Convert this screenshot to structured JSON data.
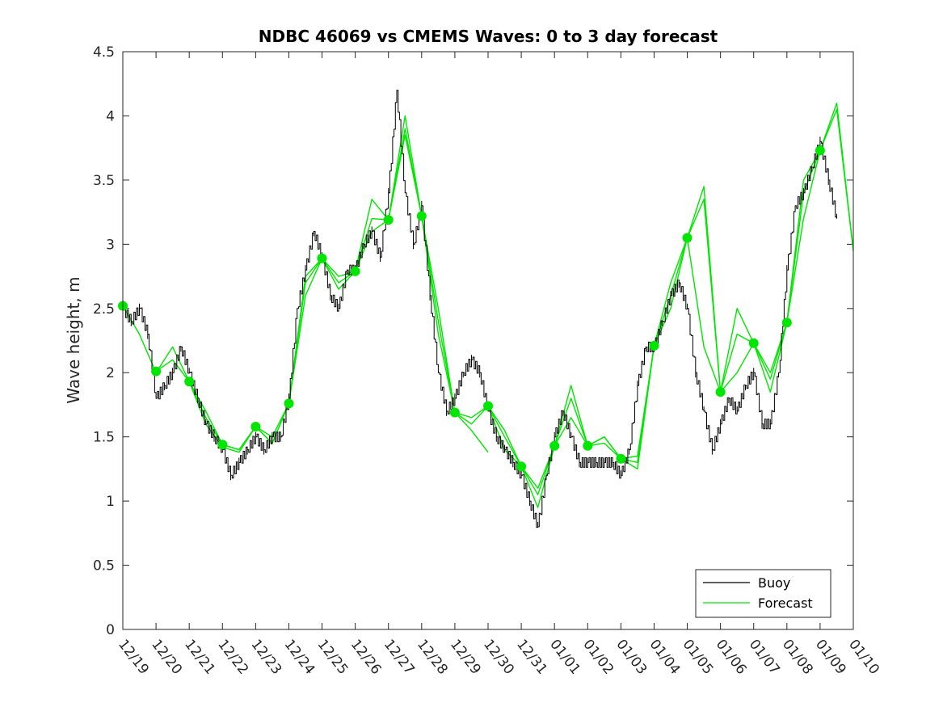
{
  "chart_data": {
    "type": "line",
    "title": "NDBC 46069 vs CMEMS Waves: 0 to 3 day forecast",
    "xlabel": "",
    "ylabel": "Wave height, m",
    "ylim": [
      0,
      4.5
    ],
    "yticks": [
      0,
      0.5,
      1,
      1.5,
      2,
      2.5,
      3,
      3.5,
      4,
      4.5
    ],
    "ytick_labels": [
      "0",
      "0.5",
      "1",
      "1.5",
      "2",
      "2.5",
      "3",
      "3.5",
      "4",
      "4.5"
    ],
    "xlim": [
      0,
      22
    ],
    "xtick_labels": [
      "12/19",
      "12/20",
      "12/21",
      "12/22",
      "12/23",
      "12/24",
      "12/25",
      "12/26",
      "12/27",
      "12/28",
      "12/29",
      "12/30",
      "12/31",
      "01/01",
      "01/02",
      "01/03",
      "01/04",
      "01/05",
      "01/06",
      "01/07",
      "01/08",
      "01/09",
      "01/10"
    ],
    "grid": false,
    "legend_position": "bottom-right",
    "legend": [
      {
        "label": "Buoy",
        "color": "#000000"
      },
      {
        "label": "Forecast",
        "color": "#00e600"
      }
    ],
    "buoy_color": "#000000",
    "forecast_color": "#00e600",
    "buoy": {
      "x": [
        0.0,
        0.25,
        0.5,
        0.75,
        1.0,
        1.25,
        1.5,
        1.75,
        2.0,
        2.25,
        2.5,
        2.75,
        3.0,
        3.25,
        3.5,
        3.75,
        4.0,
        4.25,
        4.5,
        4.75,
        5.0,
        5.25,
        5.5,
        5.75,
        6.0,
        6.25,
        6.5,
        6.75,
        7.0,
        7.25,
        7.5,
        7.75,
        8.0,
        8.25,
        8.5,
        8.75,
        9.0,
        9.25,
        9.5,
        9.75,
        10.0,
        10.25,
        10.5,
        10.75,
        11.0,
        11.25,
        11.5,
        11.75,
        12.0,
        12.25,
        12.5,
        12.75,
        13.0,
        13.25,
        13.5,
        13.75,
        14.0,
        14.25,
        14.5,
        14.75,
        15.0,
        15.25,
        15.5,
        15.75,
        16.0,
        16.25,
        16.5,
        16.75,
        17.0,
        17.25,
        17.5,
        17.75,
        18.0,
        18.25,
        18.5,
        18.75,
        19.0,
        19.25,
        19.5,
        19.75,
        20.0,
        20.25,
        20.5,
        20.75,
        21.0,
        21.25,
        21.5
      ],
      "y": [
        2.5,
        2.4,
        2.5,
        2.3,
        1.8,
        1.9,
        2.0,
        2.2,
        2.0,
        1.8,
        1.6,
        1.5,
        1.4,
        1.2,
        1.3,
        1.4,
        1.5,
        1.4,
        1.5,
        1.5,
        1.8,
        2.5,
        2.8,
        3.1,
        2.9,
        2.6,
        2.5,
        2.8,
        2.8,
        3.0,
        3.1,
        2.9,
        3.4,
        4.2,
        3.4,
        3.0,
        3.3,
        2.6,
        2.0,
        1.7,
        1.8,
        2.0,
        2.1,
        2.0,
        1.7,
        1.5,
        1.4,
        1.3,
        1.2,
        1.0,
        0.8,
        1.2,
        1.5,
        1.7,
        1.5,
        1.3,
        1.3,
        1.3,
        1.3,
        1.3,
        1.2,
        1.4,
        1.9,
        2.2,
        2.2,
        2.4,
        2.6,
        2.7,
        2.5,
        2.0,
        1.7,
        1.4,
        1.6,
        1.8,
        1.7,
        1.9,
        2.0,
        1.6,
        1.6,
        2.0,
        2.8,
        3.3,
        3.4,
        3.6,
        3.8,
        3.5,
        3.2
      ]
    },
    "forecasts": [
      {
        "x": [
          0.0,
          0.5,
          1.0,
          1.5,
          2.0,
          2.5,
          3.0
        ],
        "y": [
          2.52,
          2.3,
          2.0,
          2.2,
          1.93,
          1.65,
          1.44
        ]
      },
      {
        "x": [
          1.0,
          1.5,
          2.0,
          2.5,
          3.0,
          3.5,
          4.0
        ],
        "y": [
          2.01,
          2.1,
          1.93,
          1.6,
          1.42,
          1.38,
          1.58
        ]
      },
      {
        "x": [
          2.0,
          2.5,
          3.0,
          3.5,
          4.0,
          4.5,
          5.0
        ],
        "y": [
          1.93,
          1.7,
          1.44,
          1.4,
          1.58,
          1.5,
          1.76
        ]
      },
      {
        "x": [
          3.0,
          3.5,
          4.0,
          4.5,
          5.0,
          5.5,
          6.0
        ],
        "y": [
          1.44,
          1.4,
          1.58,
          1.45,
          1.76,
          2.6,
          2.89
        ]
      },
      {
        "x": [
          4.0,
          4.5,
          5.0,
          5.5,
          6.0,
          6.5,
          7.0
        ],
        "y": [
          1.58,
          1.45,
          1.76,
          2.7,
          2.89,
          2.65,
          2.79
        ]
      },
      {
        "x": [
          5.0,
          5.5,
          6.0,
          6.5,
          7.0,
          7.5,
          8.0
        ],
        "y": [
          1.76,
          2.75,
          2.89,
          2.7,
          2.79,
          3.1,
          3.19
        ]
      },
      {
        "x": [
          6.0,
          6.5,
          7.0,
          7.5,
          8.0,
          8.5,
          9.0
        ],
        "y": [
          2.89,
          2.75,
          2.79,
          3.35,
          3.19,
          3.9,
          3.22
        ]
      },
      {
        "x": [
          7.0,
          7.5,
          8.0,
          8.5,
          9.0,
          9.5,
          10.0
        ],
        "y": [
          2.79,
          3.2,
          3.19,
          4.0,
          3.22,
          2.5,
          1.69
        ]
      },
      {
        "x": [
          8.0,
          8.5,
          9.0,
          9.5,
          10.0,
          10.5,
          11.0
        ],
        "y": [
          3.19,
          3.85,
          3.22,
          2.3,
          1.69,
          1.55,
          1.38
        ]
      },
      {
        "x": [
          9.0,
          9.5,
          10.0,
          10.5,
          11.0,
          11.5,
          12.0
        ],
        "y": [
          3.22,
          2.4,
          1.69,
          1.65,
          1.74,
          1.4,
          1.27
        ]
      },
      {
        "x": [
          10.0,
          10.5,
          11.0,
          11.5,
          12.0,
          12.5,
          13.0
        ],
        "y": [
          1.69,
          1.6,
          1.74,
          1.55,
          1.27,
          0.95,
          1.43
        ]
      },
      {
        "x": [
          11.0,
          11.5,
          12.0,
          12.5,
          13.0,
          13.5,
          14.0
        ],
        "y": [
          1.74,
          1.5,
          1.27,
          1.05,
          1.43,
          1.9,
          1.43
        ]
      },
      {
        "x": [
          12.0,
          12.5,
          13.0,
          13.5,
          14.0,
          14.5,
          15.0
        ],
        "y": [
          1.27,
          1.1,
          1.43,
          1.8,
          1.43,
          1.5,
          1.33
        ]
      },
      {
        "x": [
          13.0,
          13.5,
          14.0,
          14.5,
          15.0,
          15.5,
          16.0
        ],
        "y": [
          1.43,
          1.65,
          1.43,
          1.45,
          1.33,
          1.3,
          2.21
        ]
      },
      {
        "x": [
          14.0,
          14.5,
          15.0,
          15.5,
          16.0,
          16.5,
          17.0
        ],
        "y": [
          1.43,
          1.5,
          1.33,
          1.25,
          2.21,
          2.5,
          3.05
        ]
      },
      {
        "x": [
          15.0,
          15.5,
          16.0,
          16.5,
          17.0,
          17.5,
          18.0
        ],
        "y": [
          1.33,
          1.35,
          2.21,
          2.6,
          3.05,
          2.2,
          1.85
        ]
      },
      {
        "x": [
          16.0,
          16.5,
          17.0,
          17.5,
          18.0,
          18.5,
          19.0
        ],
        "y": [
          2.21,
          2.7,
          3.05,
          3.35,
          1.85,
          2.0,
          2.23
        ]
      },
      {
        "x": [
          17.0,
          17.5,
          18.0,
          18.5,
          19.0,
          19.5,
          20.0
        ],
        "y": [
          3.05,
          3.45,
          1.85,
          2.3,
          2.23,
          1.95,
          2.39
        ]
      },
      {
        "x": [
          18.0,
          18.5,
          19.0,
          19.5,
          20.0,
          20.5,
          21.0
        ],
        "y": [
          1.85,
          2.5,
          2.23,
          1.85,
          2.39,
          3.5,
          3.73
        ]
      },
      {
        "x": [
          19.0,
          19.5,
          20.0,
          20.5,
          21.0,
          21.5,
          22.0
        ],
        "y": [
          2.23,
          2.0,
          2.39,
          3.2,
          3.73,
          4.1,
          2.95
        ]
      },
      {
        "x": [
          20.0,
          20.5,
          21.0,
          21.5,
          22.0
        ],
        "y": [
          2.39,
          3.4,
          3.73,
          4.05,
          2.95
        ]
      }
    ],
    "markers": {
      "x": [
        0,
        1,
        2,
        3,
        4,
        5,
        6,
        7,
        8,
        9,
        10,
        11,
        12,
        13,
        14,
        15,
        16,
        17,
        18,
        19,
        20,
        21
      ],
      "y": [
        2.52,
        2.01,
        1.93,
        1.44,
        1.58,
        1.76,
        2.89,
        2.79,
        3.19,
        3.22,
        1.69,
        1.74,
        1.27,
        1.43,
        1.43,
        1.33,
        2.21,
        3.05,
        1.85,
        2.23,
        2.39,
        3.73
      ]
    }
  }
}
